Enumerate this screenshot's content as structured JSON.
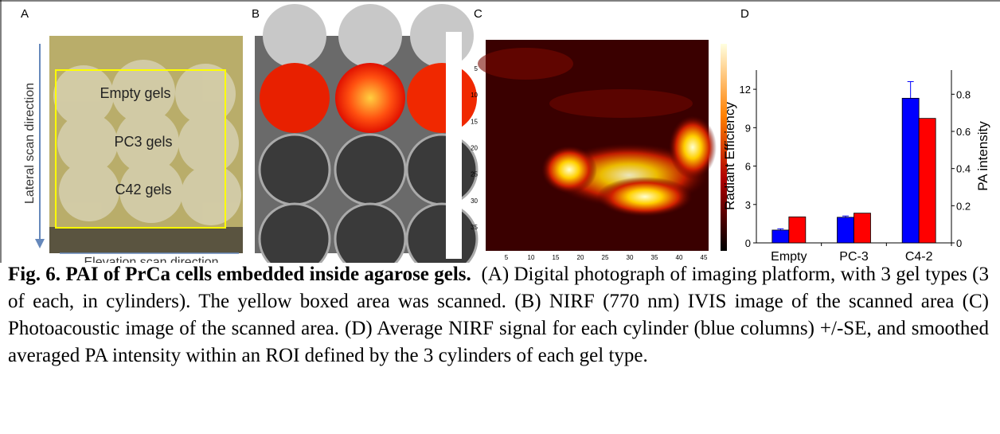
{
  "panels": {
    "a": {
      "label": "A",
      "rows": [
        "Empty gels",
        "PC3 gels",
        "C42 gels"
      ],
      "y_axis": "Lateral scan direction",
      "x_axis": "Elevation scan direction"
    },
    "b": {
      "label": "B"
    },
    "c": {
      "label": "C",
      "yticks": [
        5,
        10,
        15,
        20,
        25,
        30,
        35
      ],
      "xticks": [
        5,
        10,
        15,
        20,
        25,
        30,
        35,
        40,
        45
      ]
    },
    "d": {
      "label": "D"
    }
  },
  "chart_data": {
    "type": "bar",
    "ylabel": "Radiant Efficiency",
    "y2label": "PA intensity",
    "categories": [
      "Empty",
      "PC-3",
      "C4-2"
    ],
    "series": [
      {
        "color": "#0000ff",
        "values": [
          1.0,
          2.0,
          11.3
        ],
        "errors": [
          0.1,
          0.1,
          1.3
        ]
      },
      {
        "color": "#ff0000",
        "axis": "y2",
        "values": [
          0.14,
          0.16,
          0.67
        ]
      }
    ],
    "ylim": [
      0,
      13.5
    ],
    "yticks": [
      0,
      3,
      6,
      9,
      12
    ],
    "y2lim": [
      0,
      0.93
    ],
    "y2ticks": [
      0,
      0.2,
      0.4,
      0.6,
      0.8
    ]
  },
  "caption": {
    "label": "Fig. 6.  PAI of PrCa cells embedded inside agarose gels.",
    "text": "(A) Digital photograph of imaging platform, with 3 gel types (3 of each, in cylinders). The yellow boxed area was scanned. (B) NIRF (770 nm) IVIS image of the scanned area (C) Photoacoustic image of the scanned area. (D) Average NIRF signal for each cylinder (blue columns) +/-SE, and smoothed averaged PA intensity within an ROI defined by the 3 cylinders of each gel type."
  }
}
